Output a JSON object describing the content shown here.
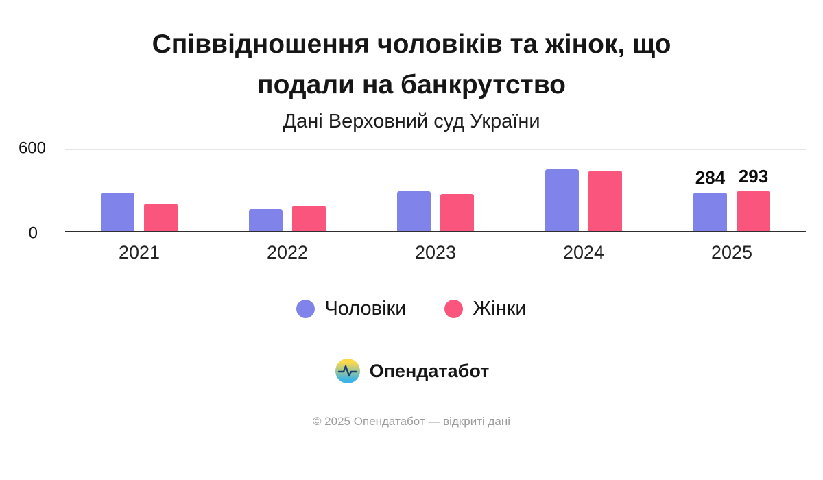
{
  "header": {
    "title_lines": [
      "Співвідношення чоловіків та жінок, що",
      "подали на банкрутство"
    ],
    "subtitle": "Дані Верховний суд України"
  },
  "logo": {
    "text": "Опендатабот"
  },
  "footer": {
    "text": "© 2025 Опендатабот — відкриті дані"
  },
  "colors": {
    "men": "#8083e9",
    "women": "#f9557d",
    "logo_yellow": "#ffd84a",
    "logo_blue": "#3cb4e5"
  },
  "chart_data": {
    "type": "bar",
    "title": "Співвідношення чоловіків та жінок, що подали на банкрутство",
    "subtitle": "Дані Верховний суд України",
    "categories": [
      "2021",
      "2022",
      "2023",
      "2024",
      "2025"
    ],
    "series": [
      {
        "key": "men",
        "name": "Чоловіки",
        "color": "#8083e9",
        "values": [
          285,
          165,
          295,
          460,
          284
        ]
      },
      {
        "key": "women",
        "name": "Жінки",
        "color": "#f9557d",
        "values": [
          205,
          190,
          275,
          450,
          293
        ]
      }
    ],
    "ylim": [
      0,
      600
    ],
    "yticks": [
      0,
      600
    ],
    "value_labels": {
      "2025": true
    },
    "grid": "top-line-only",
    "legend_position": "bottom"
  }
}
